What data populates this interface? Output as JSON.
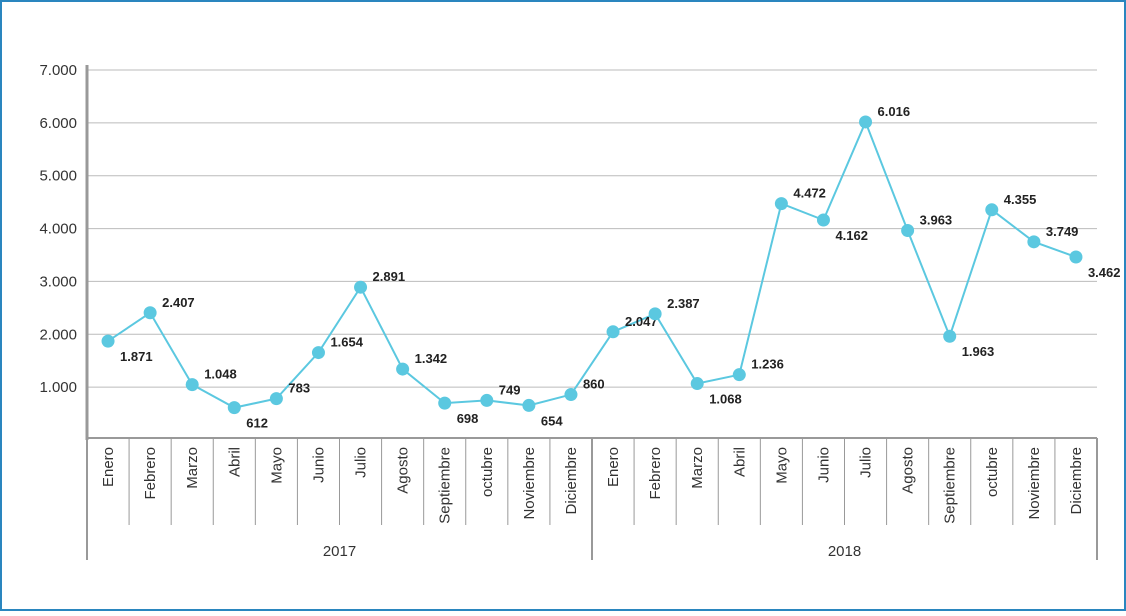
{
  "chart_data": {
    "type": "line",
    "categories": [
      "Enero",
      "Febrero",
      "Marzo",
      "Abril",
      "Mayo",
      "Junio",
      "Julio",
      "Agosto",
      "Septiembre",
      "octubre",
      "Noviembre",
      "Diciembre",
      "Enero",
      "Febrero",
      "Marzo",
      "Abril",
      "Mayo",
      "Junio",
      "Julio",
      "Agosto",
      "Septiembre",
      "octubre",
      "Noviembre",
      "Diciembre"
    ],
    "groups": [
      "2017",
      "2018"
    ],
    "series": [
      {
        "color": "#5bc8e0",
        "values": [
          1871,
          2407,
          1048,
          612,
          783,
          1654,
          2891,
          1342,
          698,
          749,
          654,
          860,
          2047,
          2387,
          1068,
          1236,
          4472,
          4162,
          6016,
          3963,
          1963,
          4355,
          3749,
          3462
        ],
        "value_labels": [
          "1.871",
          "2.407",
          "1.048",
          "612",
          "783",
          "1.654",
          "2.891",
          "1.342",
          "698",
          "749",
          "654",
          "860",
          "2.047",
          "2.387",
          "1.068",
          "1.236",
          "4.472",
          "4.162",
          "6.016",
          "3.963",
          "1.963",
          "4.355",
          "3.749",
          "3.462"
        ]
      }
    ],
    "ylim": [
      0,
      7000
    ],
    "yticks": [
      {
        "value": 1000,
        "label": "1.000"
      },
      {
        "value": 2000,
        "label": "2.000"
      },
      {
        "value": 3000,
        "label": "3.000"
      },
      {
        "value": 4000,
        "label": "4.000"
      },
      {
        "value": 5000,
        "label": "5.000"
      },
      {
        "value": 6000,
        "label": "6.000"
      },
      {
        "value": 7000,
        "label": "7.000"
      }
    ],
    "grid": true
  }
}
